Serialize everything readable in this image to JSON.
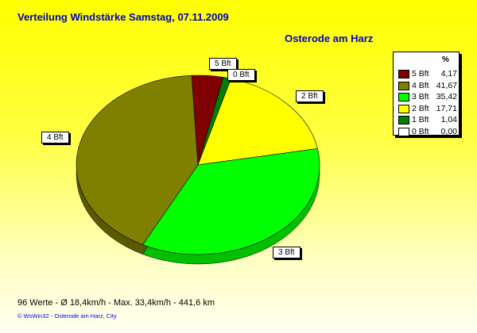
{
  "title": "Verteilung Windstärke  Samstag, 07.11.2009",
  "location": "Osterode am Harz",
  "chart_data": {
    "type": "pie",
    "title": "Verteilung Windstärke  Samstag, 07.11.2009",
    "legend_header": "%",
    "legend_position": "right",
    "slices": [
      {
        "label": "5 Bft",
        "value": 4.17,
        "value_text": "4,17",
        "color": "#800000",
        "side": "#500000"
      },
      {
        "label": "4 Bft",
        "value": 41.67,
        "value_text": "41,67",
        "color": "#808000",
        "side": "#5a5a00"
      },
      {
        "label": "3 Bft",
        "value": 35.42,
        "value_text": "35,42",
        "color": "#00ff00",
        "side": "#00c000"
      },
      {
        "label": "2 Bft",
        "value": 17.71,
        "value_text": "17,71",
        "color": "#ffff00",
        "side": "#c0c000"
      },
      {
        "label": "1 Bft",
        "value": 1.04,
        "value_text": "1,04",
        "color": "#008000",
        "side": "#005000"
      },
      {
        "label": "0 Bft",
        "value": 0.0,
        "value_text": "0,00",
        "color": "#ffffff",
        "side": "#c0c0c0"
      }
    ]
  },
  "stats": "96 Werte   -   Ø 18,4km/h  -  Max. 33,4km/h   -   441,6 km",
  "footer": "© WsWin32   -   Osterode am Harz, City"
}
